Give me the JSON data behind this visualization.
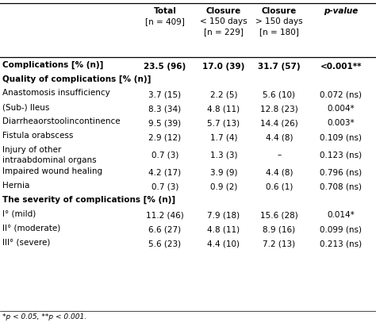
{
  "col_header_texts": [
    "Total\n[n = 409]",
    "Closure\n< 150 days\n[n = 229]",
    "Closure\n> 150 days\n[n = 180]",
    "p-value"
  ],
  "rows": [
    {
      "label": "Complications [% (n)]",
      "bold": true,
      "section": false,
      "italic_n": true,
      "vals": [
        "23.5 (96)",
        "17.0 (39)",
        "31.7 (57)",
        "<0.001**"
      ]
    },
    {
      "label": "Quality of complications [% (n)]",
      "bold": true,
      "section": true,
      "italic_n": true,
      "vals": [
        "",
        "",
        "",
        ""
      ]
    },
    {
      "label": "Anastomosis insufficiency",
      "bold": false,
      "section": false,
      "italic_n": false,
      "vals": [
        "3.7 (15)",
        "2.2 (5)",
        "5.6 (10)",
        "0.072 (ns)"
      ]
    },
    {
      "label": "(Sub-) Ileus",
      "bold": false,
      "section": false,
      "italic_n": false,
      "vals": [
        "8.3 (34)",
        "4.8 (11)",
        "12.8 (23)",
        "0.004*"
      ]
    },
    {
      "label": "Diarrheaorstoolincontinence",
      "bold": false,
      "section": false,
      "italic_n": false,
      "vals": [
        "9.5 (39)",
        "5.7 (13)",
        "14.4 (26)",
        "0.003*"
      ]
    },
    {
      "label": "Fistula orabscess",
      "bold": false,
      "section": false,
      "italic_n": false,
      "vals": [
        "2.9 (12)",
        "1.7 (4)",
        "4.4 (8)",
        "0.109 (ns)"
      ]
    },
    {
      "label": "Injury of other\nintraabdominal organs",
      "bold": false,
      "section": false,
      "italic_n": false,
      "vals": [
        "0.7 (3)",
        "1.3 (3)",
        "–",
        "0.123 (ns)"
      ]
    },
    {
      "label": "Impaired wound healing",
      "bold": false,
      "section": false,
      "italic_n": false,
      "vals": [
        "4.2 (17)",
        "3.9 (9)",
        "4.4 (8)",
        "0.796 (ns)"
      ]
    },
    {
      "label": "Hernia",
      "bold": false,
      "section": false,
      "italic_n": false,
      "vals": [
        "0.7 (3)",
        "0.9 (2)",
        "0.6 (1)",
        "0.708 (ns)"
      ]
    },
    {
      "label": "The severity of complications [% (n)]",
      "bold": true,
      "section": true,
      "italic_n": true,
      "vals": [
        "",
        "",
        "",
        ""
      ]
    },
    {
      "label": "I° (mild)",
      "bold": false,
      "section": false,
      "italic_n": false,
      "vals": [
        "11.2 (46)",
        "7.9 (18)",
        "15.6 (28)",
        "0.014*"
      ]
    },
    {
      "label": "II° (moderate)",
      "bold": false,
      "section": false,
      "italic_n": false,
      "vals": [
        "6.6 (27)",
        "4.8 (11)",
        "8.9 (16)",
        "0.099 (ns)"
      ]
    },
    {
      "label": "III° (severe)",
      "bold": false,
      "section": false,
      "italic_n": false,
      "vals": [
        "5.6 (23)",
        "4.4 (10)",
        "7.2 (13)",
        "0.213 (ns)"
      ]
    }
  ],
  "footnote": "*p < 0.05, **p < 0.001.",
  "bg_color": "#ffffff",
  "text_color": "#000000",
  "font_size": 7.5,
  "header_font_size": 7.5
}
